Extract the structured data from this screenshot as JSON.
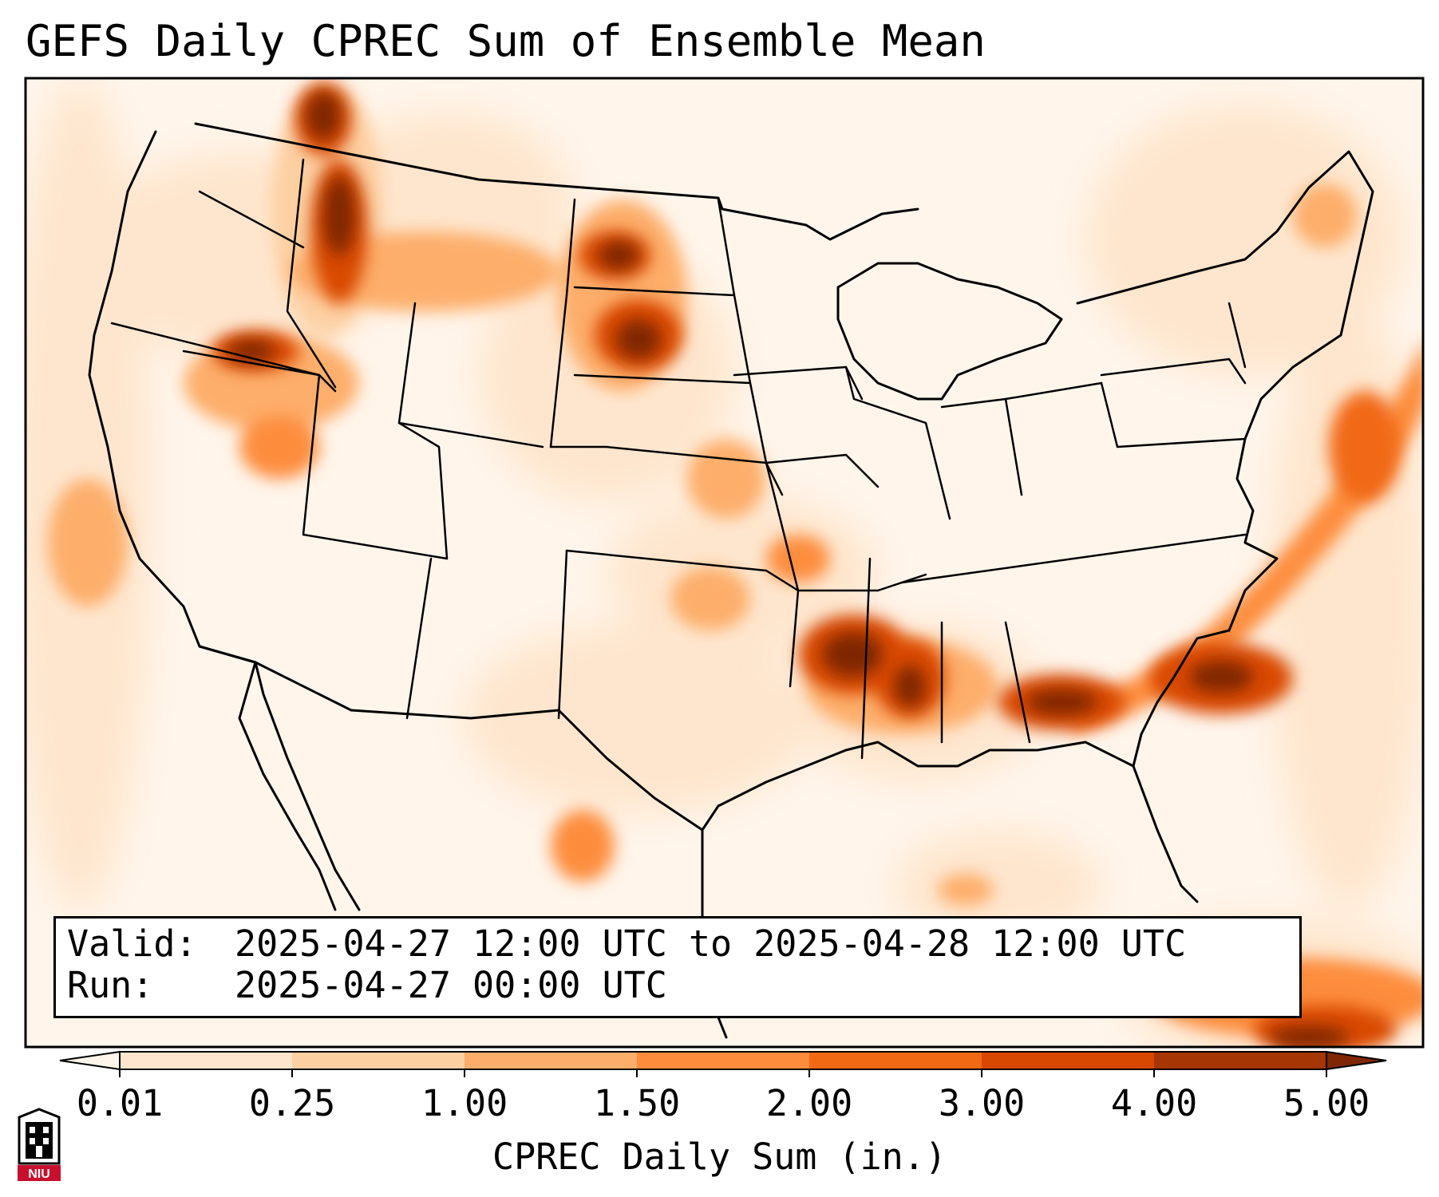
{
  "title": "GEFS Daily CPREC Sum of Ensemble Mean",
  "info": {
    "valid_label": "Valid:",
    "valid_value": "2025-04-27 12:00 UTC to 2025-04-28 12:00 UTC",
    "run_label": "Run:",
    "run_value": "2025-04-27 00:00 UTC"
  },
  "colorbar": {
    "label": "CPREC Daily Sum (in.)",
    "ticks": [
      "0.01",
      "0.25",
      "1.00",
      "1.50",
      "2.00",
      "3.00",
      "4.00",
      "5.00"
    ],
    "colors": [
      "#fff5eb",
      "#fee6ce",
      "#fdd0a2",
      "#fdae6b",
      "#fd8d3c",
      "#f16913",
      "#d94801",
      "#a63603",
      "#7f2704"
    ]
  },
  "logo": {
    "text": "NIU",
    "icon": "niu-tower-logo-icon"
  },
  "map": {
    "projection": "lambert-conformal",
    "region": "CONUS",
    "precip_areas": [
      {
        "name": "pacific-northwest-ridge",
        "level": 8
      },
      {
        "name": "northern-plains",
        "level": 8
      },
      {
        "name": "lower-mississippi",
        "level": 8
      },
      {
        "name": "georgia",
        "level": 7
      },
      {
        "name": "carolina-coast",
        "level": 8
      },
      {
        "name": "atlantic-frontal-band",
        "level": 6
      },
      {
        "name": "caribbean",
        "level": 7
      }
    ]
  }
}
